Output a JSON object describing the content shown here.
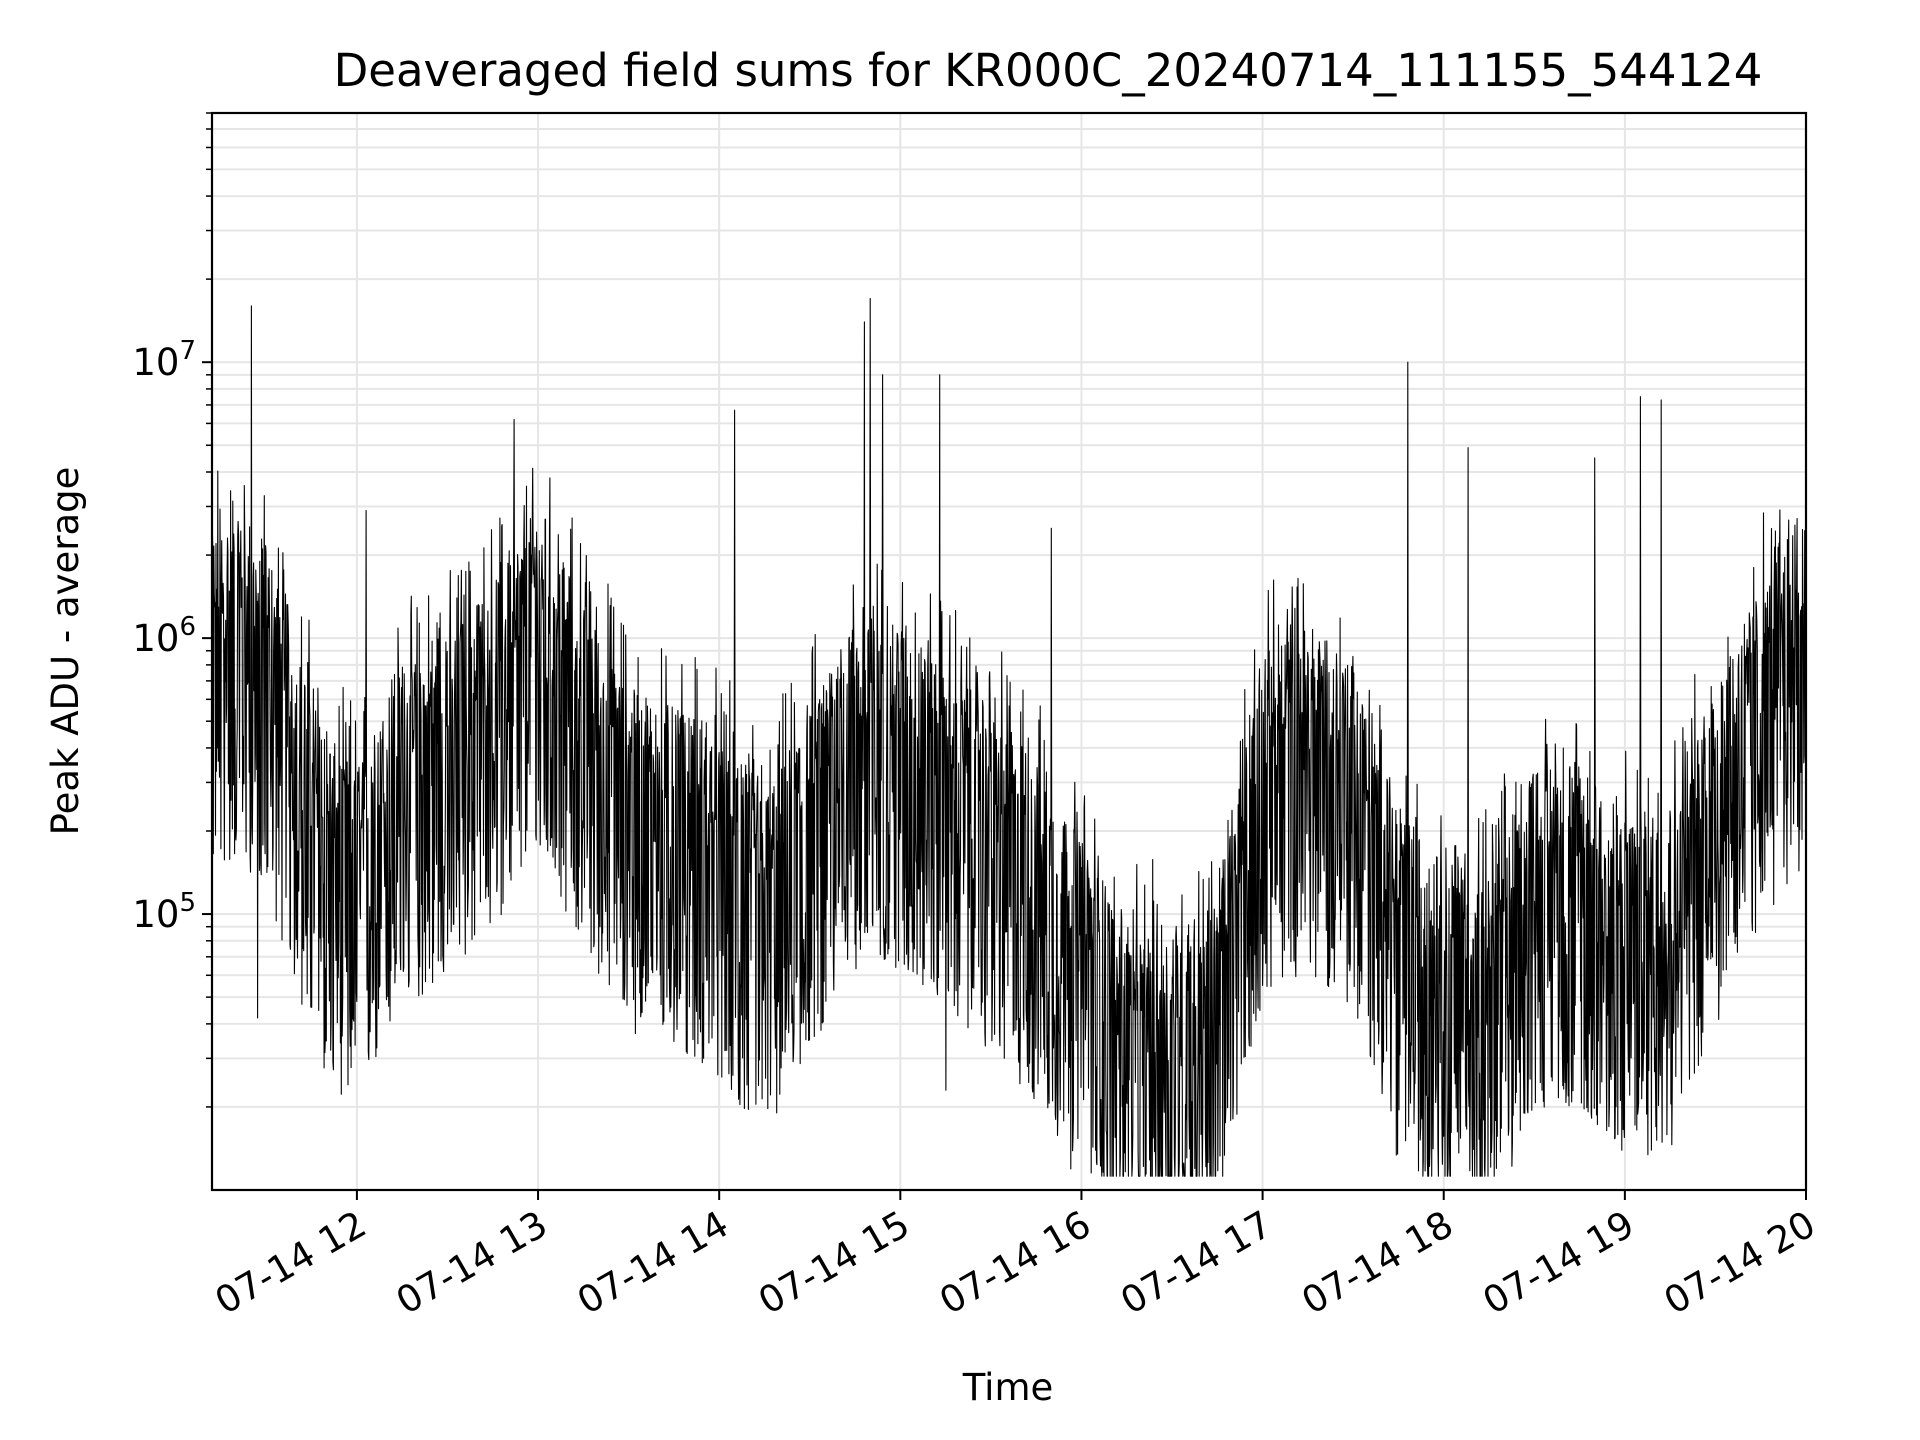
{
  "chart_data": {
    "type": "line",
    "title": "Deaveraged field sums for KR000C_20240714_111155_544124",
    "xlabel": "Time",
    "ylabel": "Peak ADU - average",
    "xscale": "time",
    "yscale": "log",
    "xlim": [
      "07-14 11:12",
      "07-14 20:00"
    ],
    "ylim": [
      10000,
      80000000
    ],
    "x_ticks": [
      "07-14 12",
      "07-14 13",
      "07-14 14",
      "07-14 15",
      "07-14 16",
      "07-14 17",
      "07-14 18",
      "07-14 19",
      "07-14 20"
    ],
    "y_ticks": [
      {
        "base": "10",
        "exp": "5",
        "value": 100000
      },
      {
        "base": "10",
        "exp": "6",
        "value": 1000000
      },
      {
        "base": "10",
        "exp": "7",
        "value": 10000000
      }
    ],
    "grid": true,
    "line_color": "#000000",
    "grid_color": "#e6e6e6",
    "series": [
      {
        "x": [
          "07-14 11:12",
          "07-14 11:20",
          "07-14 11:30",
          "07-14 11:40",
          "07-14 11:50",
          "07-14 12:00",
          "07-14 12:15",
          "07-14 12:30",
          "07-14 12:45",
          "07-14 13:00",
          "07-14 13:15",
          "07-14 13:30",
          "07-14 13:45",
          "07-14 14:00",
          "07-14 14:15",
          "07-14 14:30",
          "07-14 14:45",
          "07-14 15:00",
          "07-14 15:15",
          "07-14 15:30",
          "07-14 15:45",
          "07-14 16:00",
          "07-14 16:15",
          "07-14 16:30",
          "07-14 16:45",
          "07-14 17:00",
          "07-14 17:15",
          "07-14 17:30",
          "07-14 17:45",
          "07-14 18:00",
          "07-14 18:15",
          "07-14 18:30",
          "07-14 18:45",
          "07-14 19:00",
          "07-14 19:15",
          "07-14 19:30",
          "07-14 19:45",
          "07-14 20:00"
        ],
        "values": [
          1100000,
          1200000,
          1000000,
          400000,
          200000,
          150000,
          350000,
          450000,
          700000,
          1300000,
          600000,
          300000,
          250000,
          200000,
          120000,
          250000,
          500000,
          500000,
          350000,
          250000,
          160000,
          80000,
          40000,
          40000,
          50000,
          400000,
          500000,
          350000,
          100000,
          70000,
          60000,
          150000,
          160000,
          100000,
          110000,
          300000,
          700000,
          1200000
        ]
      }
    ],
    "spikes": [
      {
        "x": "07-14 11:25",
        "value": 16000000
      },
      {
        "x": "07-14 11:27",
        "value": 42000
      },
      {
        "x": "07-14 12:03",
        "value": 2900000
      },
      {
        "x": "07-14 12:52",
        "value": 6200000
      },
      {
        "x": "07-14 14:05",
        "value": 6700000
      },
      {
        "x": "07-14 14:48",
        "value": 14000000
      },
      {
        "x": "07-14 14:50",
        "value": 17000000
      },
      {
        "x": "07-14 14:54",
        "value": 9000000
      },
      {
        "x": "07-14 15:13",
        "value": 9000000
      },
      {
        "x": "07-14 15:15",
        "value": 23000
      },
      {
        "x": "07-14 15:50",
        "value": 2500000
      },
      {
        "x": "07-14 16:17",
        "value": 16000
      },
      {
        "x": "07-14 17:48",
        "value": 10000000
      },
      {
        "x": "07-14 18:08",
        "value": 4900000
      },
      {
        "x": "07-14 18:50",
        "value": 4500000
      },
      {
        "x": "07-14 19:05",
        "value": 7500000
      },
      {
        "x": "07-14 19:12",
        "value": 7300000
      }
    ]
  }
}
